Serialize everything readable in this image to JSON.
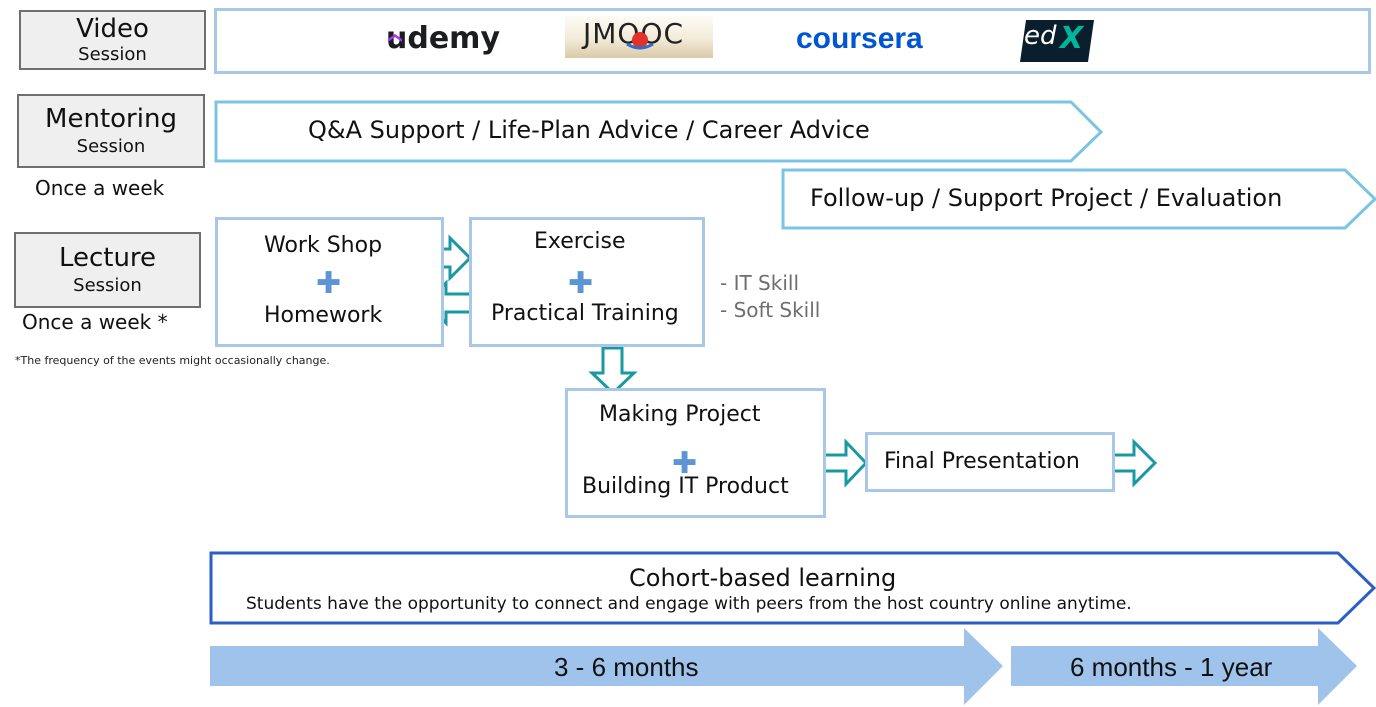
{
  "sessions": {
    "video": {
      "title": "Video",
      "subtitle": "Session"
    },
    "mentoring": {
      "title": "Mentoring",
      "subtitle": "Session",
      "frequency": "Once a week"
    },
    "lecture": {
      "title": "Lecture",
      "subtitle": "Session",
      "frequency": "Once a week *"
    }
  },
  "logos": {
    "udemy": {
      "prefix": "u",
      "rest": "demy",
      "icon": "udemy-hat-icon"
    },
    "jmooc": "JMOOC",
    "coursera": "coursera",
    "edx": {
      "ed": "ed",
      "x": "X"
    }
  },
  "mentoring_banner": "Q&A  Support / Life-Plan Advice / Career Advice",
  "followup_banner": "Follow-up / Support Project / Evaluation",
  "workshop": {
    "top": "Work Shop",
    "bottom": "Homework"
  },
  "exercise": {
    "top": "Exercise",
    "bottom": "Practical Training"
  },
  "skills": [
    "- IT Skill",
    "- Soft Skill"
  ],
  "project": {
    "top": "Making Project",
    "bottom": "Building IT Product"
  },
  "final": "Final Presentation",
  "footnote": "*The frequency of the events might occasionally change.",
  "cohort": {
    "title": "Cohort-based learning",
    "desc": "Students have the opportunity to connect and engage with peers from the host country online anytime."
  },
  "timeline": [
    "3 - 6 months",
    "6 months - 1 year"
  ],
  "colors": {
    "light_border": "#a9c8e8",
    "banner_border": "#7cc4e4",
    "cohort_border": "#2b5fc7",
    "timeline_fill": "#9fc3ea",
    "teal_arrow": "#1a9aa0",
    "plus": "#5b95d3"
  }
}
